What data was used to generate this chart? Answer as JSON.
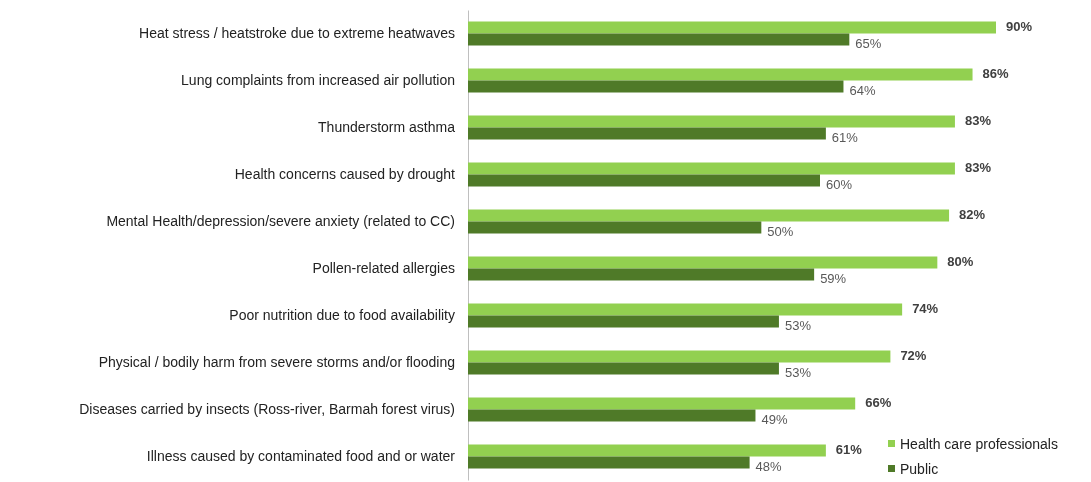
{
  "chart_data": {
    "type": "bar",
    "orientation": "horizontal",
    "legend": "bottom right",
    "categories": [
      "Heat stress / heatstroke due to extreme heatwaves",
      "Lung complaints from increased air pollution",
      "Thunderstorm asthma",
      "Health concerns caused by drought",
      "Mental Health/depression/severe anxiety (related to CC)",
      "Pollen-related allergies",
      "Poor nutrition due to food availability",
      "Physical / bodily harm from severe storms and/or flooding",
      "Diseases carried by insects (Ross-river, Barmah forest virus)",
      "Illness caused by contaminated food and or water"
    ],
    "series": [
      {
        "name": "Health care professionals",
        "color": "#92d050",
        "values": [
          90,
          86,
          83,
          83,
          82,
          80,
          74,
          72,
          66,
          61
        ],
        "value_labels": [
          "90%",
          "86%",
          "83%",
          "83%",
          "82%",
          "80%",
          "74%",
          "72%",
          "66%",
          "61%"
        ]
      },
      {
        "name": "Public",
        "color": "#4f7a28",
        "values": [
          65,
          64,
          61,
          60,
          50,
          59,
          53,
          53,
          49,
          48
        ],
        "value_labels": [
          "65%",
          "64%",
          "61%",
          "60%",
          "50%",
          "59%",
          "53%",
          "53%",
          "49%",
          "48%"
        ]
      }
    ]
  }
}
